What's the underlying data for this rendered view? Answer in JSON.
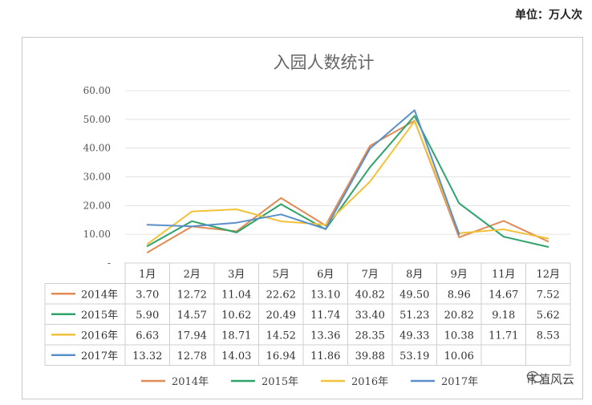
{
  "unit_label": "单位：万人次",
  "watermark": "市值风云",
  "colors": {
    "2014年": "#e28a53",
    "2015年": "#2ea36a",
    "2016年": "#f2c23a",
    "2017年": "#5b8fc9"
  },
  "chart_data": {
    "type": "line",
    "title": "入园人数统计",
    "xlabel": "",
    "ylabel": "",
    "ylim": [
      0,
      60
    ],
    "y_ticks": [
      "-",
      "10.00",
      "20.00",
      "30.00",
      "40.00",
      "50.00",
      "60.00"
    ],
    "categories": [
      "1月",
      "2月",
      "3月",
      "5月",
      "6月",
      "7月",
      "8月",
      "9月",
      "11月",
      "12月"
    ],
    "series": [
      {
        "name": "2014年",
        "values": [
          "3.70",
          "12.72",
          "11.04",
          "22.62",
          "13.10",
          "40.82",
          "49.50",
          "8.96",
          "14.67",
          "7.52"
        ]
      },
      {
        "name": "2015年",
        "values": [
          "5.90",
          "14.57",
          "10.62",
          "20.49",
          "11.74",
          "33.40",
          "51.23",
          "20.82",
          "9.18",
          "5.62"
        ]
      },
      {
        "name": "2016年",
        "values": [
          "6.63",
          "17.94",
          "18.71",
          "14.52",
          "13.36",
          "28.35",
          "49.33",
          "10.38",
          "11.71",
          "8.53"
        ]
      },
      {
        "name": "2017年",
        "values": [
          "13.32",
          "12.78",
          "14.03",
          "16.94",
          "11.86",
          "39.88",
          "53.19",
          "10.06",
          "",
          ""
        ]
      }
    ],
    "grid": true,
    "legend": "bottom",
    "data_table": true
  }
}
